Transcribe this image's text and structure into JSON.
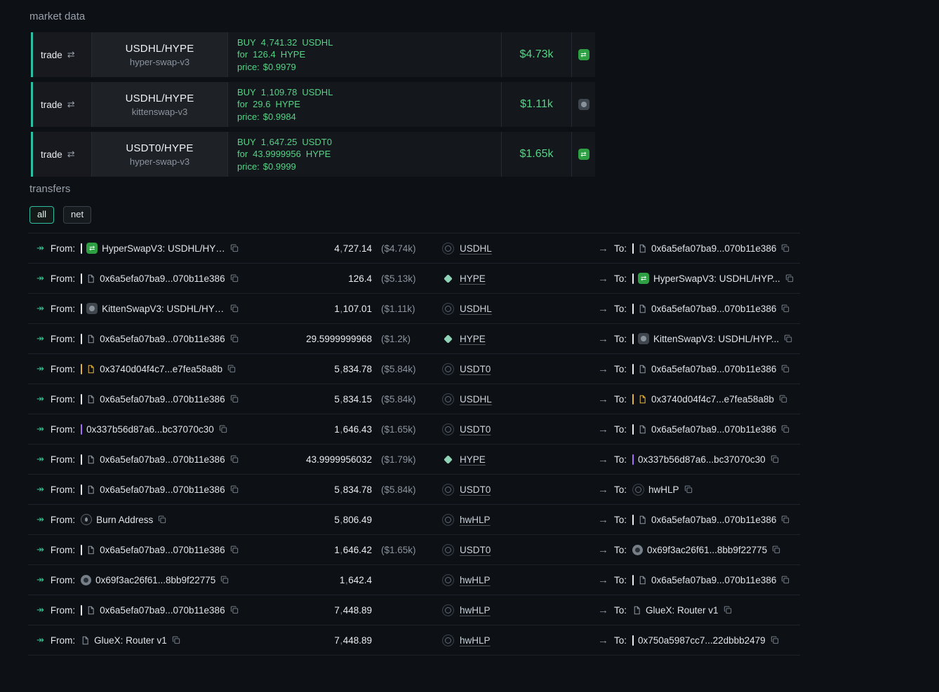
{
  "colors": {
    "accent_teal": "#2cbfa4",
    "trade_green": "#55d387",
    "tag_yellow": "#e3b341",
    "tag_purple": "#a371f7",
    "hyperswap_green": "#2ea043",
    "page_bg": "#0d1014"
  },
  "market_data": {
    "heading": "market data",
    "trades": [
      {
        "label": "trade",
        "pair": "USDHL/HYPE",
        "venue": "hyper-swap-v3",
        "side": "BUY",
        "amount": "4,741.32",
        "token": "USDHL",
        "for_label": "for",
        "for_amount": "126.4",
        "for_token": "HYPE",
        "price_label": "price:",
        "price": "$0.9979",
        "value": "$4.73k",
        "venue_icon": "hyperswap"
      },
      {
        "label": "trade",
        "pair": "USDHL/HYPE",
        "venue": "kittenswap-v3",
        "side": "BUY",
        "amount": "1,109.78",
        "token": "USDHL",
        "for_label": "for",
        "for_amount": "29.6",
        "for_token": "HYPE",
        "price_label": "price:",
        "price": "$0.9984",
        "value": "$1.11k",
        "venue_icon": "kittenswap"
      },
      {
        "label": "trade",
        "pair": "USDT0/HYPE",
        "venue": "hyper-swap-v3",
        "side": "BUY",
        "amount": "1,647.25",
        "token": "USDT0",
        "for_label": "for",
        "for_amount": "43.9999956",
        "for_token": "HYPE",
        "price_label": "price:",
        "price": "$0.9999",
        "value": "$1.65k",
        "venue_icon": "hyperswap"
      }
    ]
  },
  "transfers": {
    "heading": "transfers",
    "from_label": "From:",
    "to_label": "To:",
    "tabs": [
      {
        "label": "all",
        "active": true
      },
      {
        "label": "net",
        "active": false
      }
    ],
    "rows": [
      {
        "from": {
          "name": "HyperSwapV3: USDHL/HYP...",
          "bar": "white",
          "icon": "hyperswap",
          "copy": true
        },
        "amount": "4,727.14",
        "usd": "($4.74k)",
        "token": "USDHL",
        "to": {
          "name": "0x6a5efa07ba9...070b11e386",
          "bar": "white",
          "icon": "doc",
          "copy": true
        }
      },
      {
        "from": {
          "name": "0x6a5efa07ba9...070b11e386",
          "bar": "white",
          "icon": "doc",
          "copy": true
        },
        "amount": "126.4",
        "usd": "($5.13k)",
        "token": "HYPE",
        "to": {
          "name": "HyperSwapV3: USDHL/HYP...",
          "bar": "white",
          "icon": "hyperswap",
          "copy": true
        }
      },
      {
        "from": {
          "name": "KittenSwapV3: USDHL/HYP...",
          "bar": "white",
          "icon": "kittenswap",
          "copy": true
        },
        "amount": "1,107.01",
        "usd": "($1.11k)",
        "token": "USDHL",
        "to": {
          "name": "0x6a5efa07ba9...070b11e386",
          "bar": "white",
          "icon": "doc",
          "copy": true
        }
      },
      {
        "from": {
          "name": "0x6a5efa07ba9...070b11e386",
          "bar": "white",
          "icon": "doc",
          "copy": true
        },
        "amount": "29.5999999968",
        "usd": "($1.2k)",
        "token": "HYPE",
        "to": {
          "name": "KittenSwapV3: USDHL/HYP...",
          "bar": "white",
          "icon": "kittenswap",
          "copy": true
        }
      },
      {
        "from": {
          "name": "0x3740d04f4c7...e7fea58a8b",
          "bar": "yellow",
          "icon": "doc-yellow",
          "copy": true
        },
        "amount": "5,834.78",
        "usd": "($5.84k)",
        "token": "USDT0",
        "to": {
          "name": "0x6a5efa07ba9...070b11e386",
          "bar": "white",
          "icon": "doc",
          "copy": true
        }
      },
      {
        "from": {
          "name": "0x6a5efa07ba9...070b11e386",
          "bar": "white",
          "icon": "doc",
          "copy": true
        },
        "amount": "5,834.15",
        "usd": "($5.84k)",
        "token": "USDHL",
        "to": {
          "name": "0x3740d04f4c7...e7fea58a8b",
          "bar": "yellow",
          "icon": "doc-yellow",
          "copy": true
        }
      },
      {
        "from": {
          "name": "0x337b56d87a6...bc37070c30",
          "bar": "purple",
          "icon": null,
          "copy": true
        },
        "amount": "1,646.43",
        "usd": "($1.65k)",
        "token": "USDT0",
        "to": {
          "name": "0x6a5efa07ba9...070b11e386",
          "bar": "white",
          "icon": "doc",
          "copy": true
        }
      },
      {
        "from": {
          "name": "0x6a5efa07ba9...070b11e386",
          "bar": "white",
          "icon": "doc",
          "copy": true
        },
        "amount": "43.9999956032",
        "usd": "($1.79k)",
        "token": "HYPE",
        "to": {
          "name": "0x337b56d87a6...bc37070c30",
          "bar": "purple",
          "icon": null,
          "copy": true
        }
      },
      {
        "from": {
          "name": "0x6a5efa07ba9...070b11e386",
          "bar": "white",
          "icon": "doc",
          "copy": true
        },
        "amount": "5,834.78",
        "usd": "($5.84k)",
        "token": "USDT0",
        "to": {
          "name": "hwHLP",
          "bar": null,
          "icon": "token-ring",
          "copy": true
        }
      },
      {
        "from": {
          "name": "Burn Address",
          "bar": null,
          "icon": "burn",
          "copy": true
        },
        "amount": "5,806.49",
        "usd": "",
        "token": "hwHLP",
        "to": {
          "name": "0x6a5efa07ba9...070b11e386",
          "bar": "white",
          "icon": "doc",
          "copy": true
        }
      },
      {
        "from": {
          "name": "0x6a5efa07ba9...070b11e386",
          "bar": "white",
          "icon": "doc",
          "copy": true
        },
        "amount": "1,646.42",
        "usd": "($1.65k)",
        "token": "USDT0",
        "to": {
          "name": "0x69f3ac26f61...8bb9f22775",
          "bar": null,
          "icon": "wallet",
          "copy": true,
          "link": false
        }
      },
      {
        "from": {
          "name": "0x69f3ac26f61...8bb9f22775",
          "bar": null,
          "icon": "wallet",
          "copy": true,
          "link": false
        },
        "amount": "1,642.4",
        "usd": "",
        "token": "hwHLP",
        "to": {
          "name": "0x6a5efa07ba9...070b11e386",
          "bar": "white",
          "icon": "doc",
          "copy": true
        }
      },
      {
        "from": {
          "name": "0x6a5efa07ba9...070b11e386",
          "bar": "white",
          "icon": "doc",
          "copy": true
        },
        "amount": "7,448.89",
        "usd": "",
        "token": "hwHLP",
        "to": {
          "name": "GlueX: Router v1",
          "bar": null,
          "icon": "doc",
          "copy": true
        }
      },
      {
        "from": {
          "name": "GlueX: Router v1",
          "bar": null,
          "icon": "doc",
          "copy": true
        },
        "amount": "7,448.89",
        "usd": "",
        "token": "hwHLP",
        "to": {
          "name": "0x750a5987cc7...22dbbb2479",
          "bar": "white",
          "icon": null,
          "copy": true
        }
      }
    ]
  }
}
